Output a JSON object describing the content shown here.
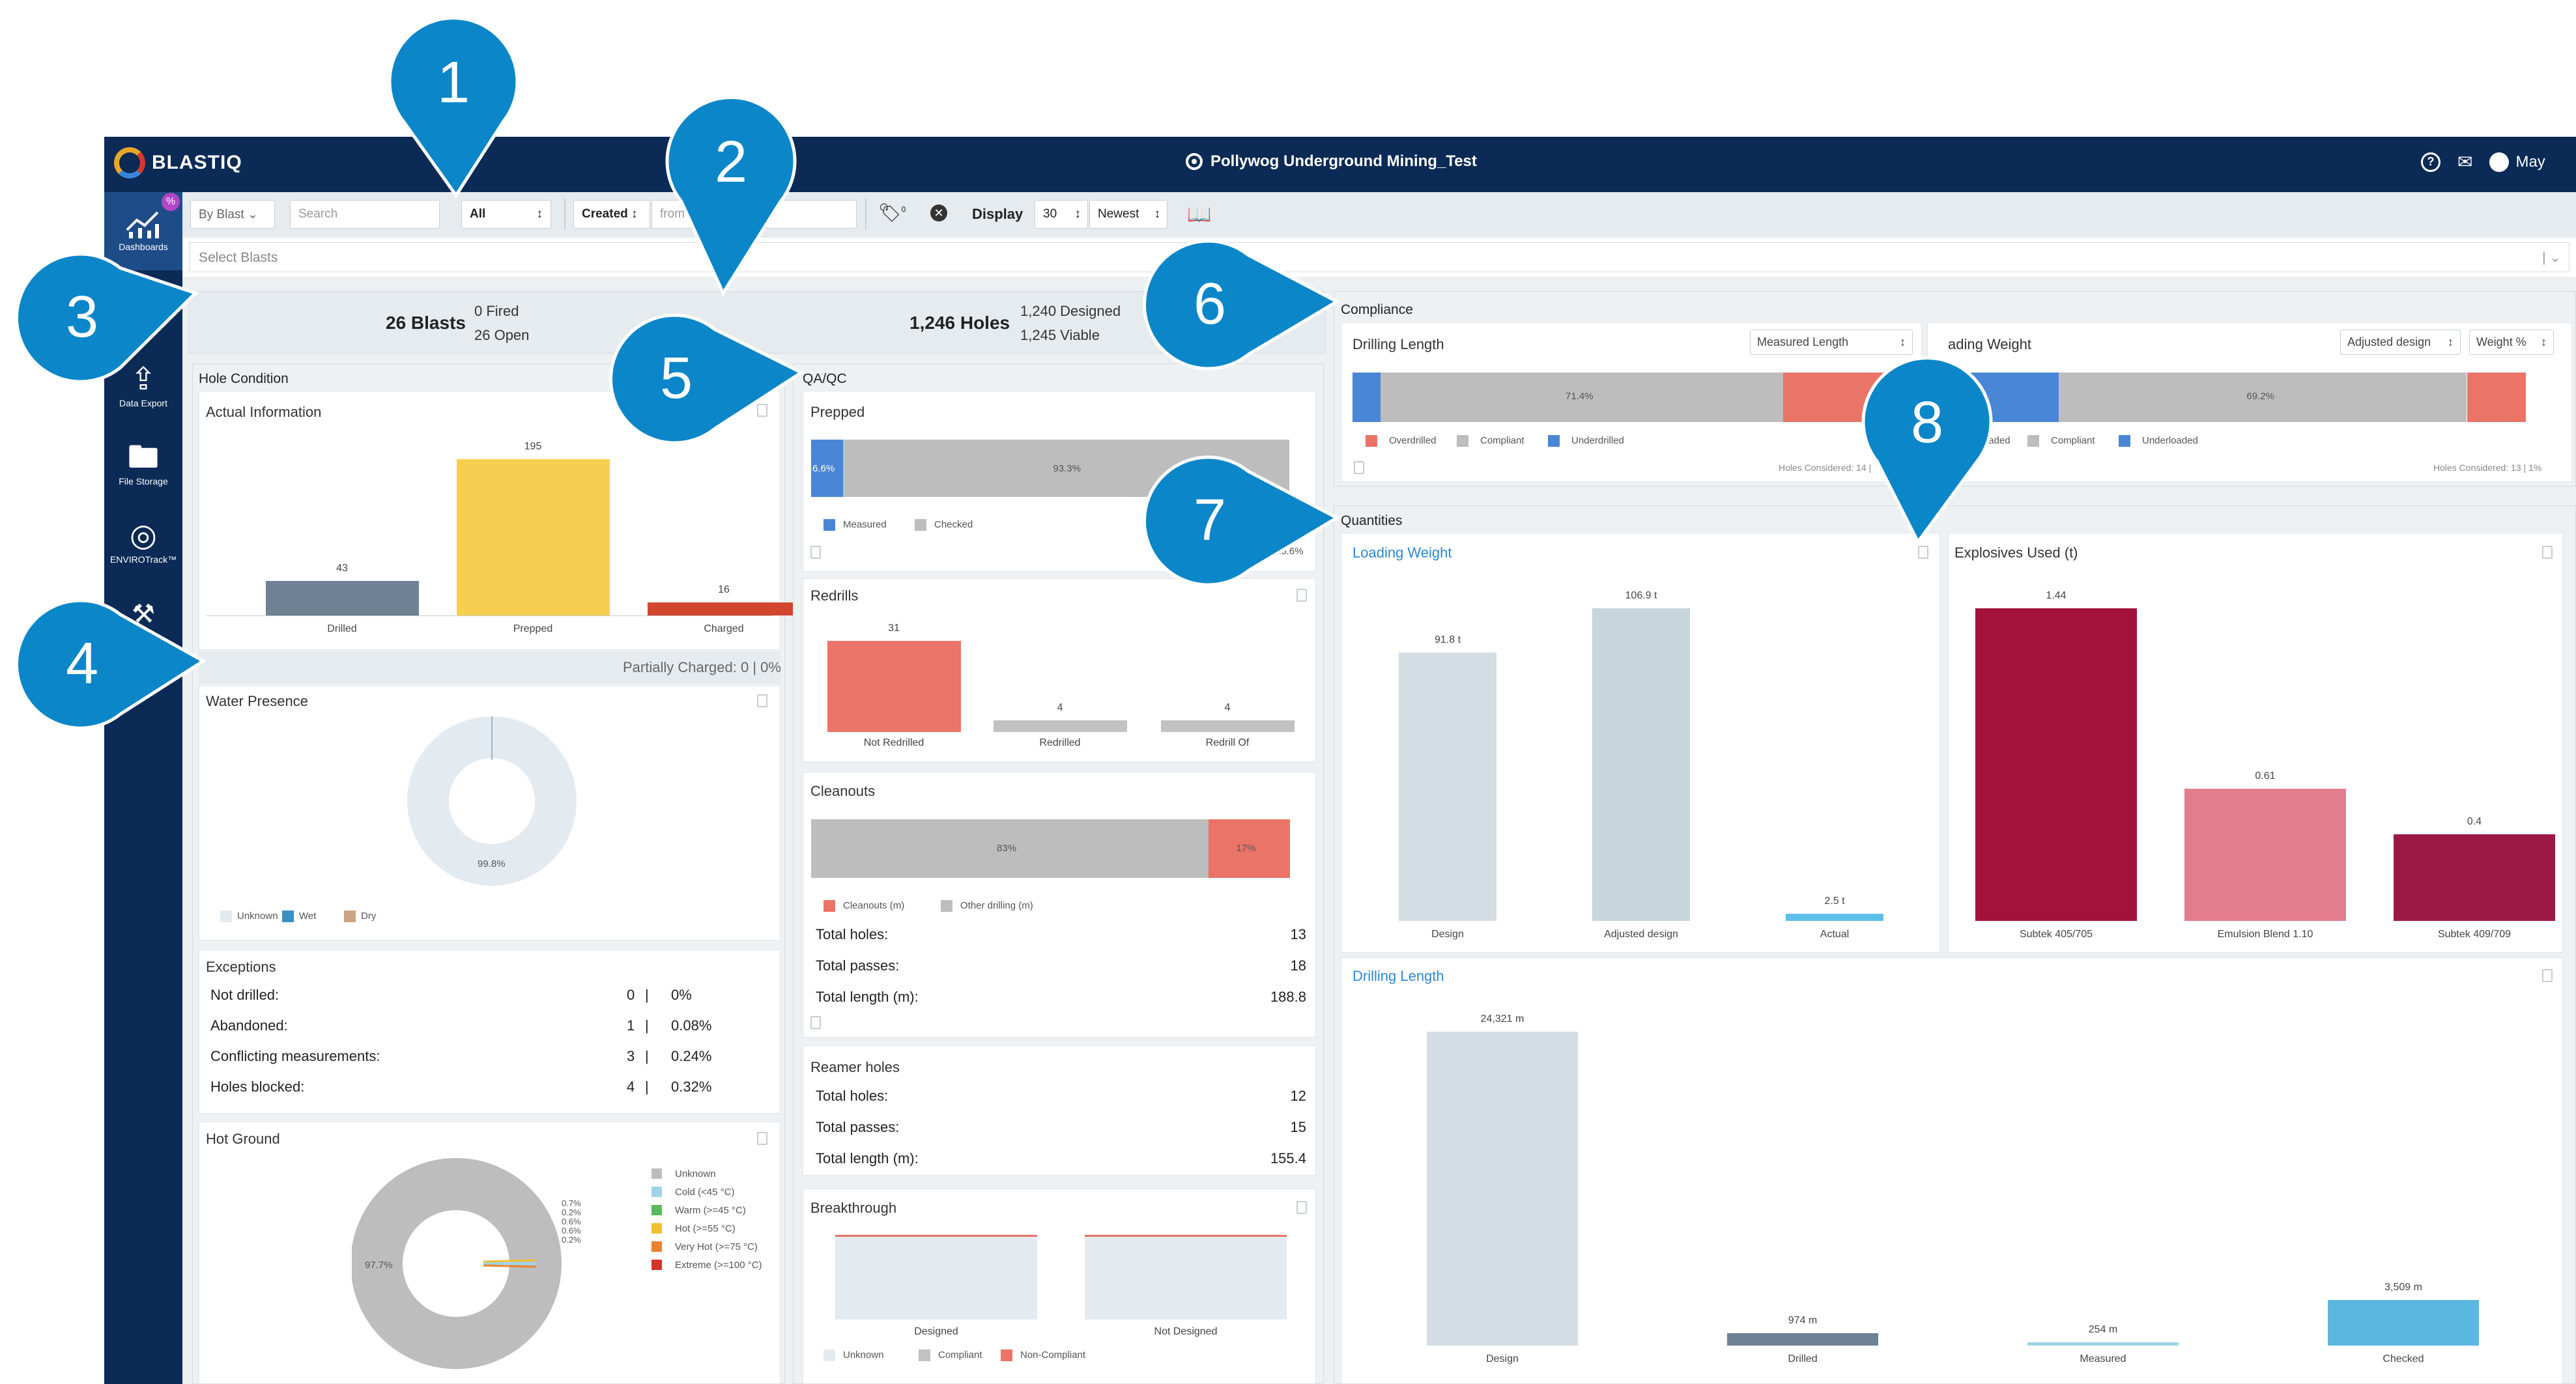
{
  "app": {
    "logo_text": "BLASTIQ",
    "site_title": "Pollywog Underground Mining_Test",
    "user": "May"
  },
  "sidebar": {
    "items": [
      {
        "label": "Dashboards",
        "icon": "chart-icon"
      },
      {
        "label": "Data Export",
        "icon": "upload-icon"
      },
      {
        "label": "File Storage",
        "icon": "folder-icon"
      },
      {
        "label": "ENVIROTrack™",
        "icon": "envirotrack-icon"
      },
      {
        "label": "",
        "icon": "tools-icon"
      }
    ],
    "badge": "%"
  },
  "filters": {
    "by_blast": "By Blast",
    "search_placeholder": "Search",
    "status": "All",
    "date_type": "Created",
    "from_placeholder": "from",
    "to_placeholder": "to",
    "tag_count": "0",
    "display_label": "Display",
    "display_count": "30",
    "sort": "Newest",
    "select_blasts_placeholder": "Select Blasts"
  },
  "summary": {
    "blasts": "26 Blasts",
    "fired": "0 Fired",
    "open": "26 Open",
    "holes": "1,246 Holes",
    "designed": "1,240 Designed",
    "viable": "1,245 Viable"
  },
  "hole_condition": {
    "title": "Hole Condition",
    "actual_info": {
      "title": "Actual Information",
      "bars": [
        {
          "label": "Drilled",
          "value": 43,
          "color": "#6e8195"
        },
        {
          "label": "Prepped",
          "value": 195,
          "color": "#f6cf50"
        },
        {
          "label": "Charged",
          "value": 16,
          "color": "#d2452f"
        }
      ],
      "partially_charged": "Partially Charged: 0 | 0%"
    },
    "water_presence": {
      "title": "Water Presence",
      "slice_label": "99.8%",
      "legend": [
        {
          "label": "Unknown",
          "color": "#e3ebf1"
        },
        {
          "label": "Wet",
          "color": "#3a8fc4"
        },
        {
          "label": "Dry",
          "color": "#c9a582"
        }
      ]
    },
    "exceptions": {
      "title": "Exceptions",
      "rows": [
        {
          "label": "Not drilled:",
          "count": "0",
          "pct": "0%"
        },
        {
          "label": "Abandoned:",
          "count": "1",
          "pct": "0.08%"
        },
        {
          "label": "Conflicting measurements:",
          "count": "3",
          "pct": "0.24%"
        },
        {
          "label": "Holes blocked:",
          "count": "4",
          "pct": "0.32%"
        }
      ]
    },
    "hot_ground": {
      "title": "Hot Ground",
      "main_label": "97.7%",
      "side_labels": [
        "0.7%",
        "0.2%",
        "0.6%",
        "0.6%",
        "0.2%"
      ],
      "legend": [
        {
          "label": "Unknown",
          "color": "#bdbdbd"
        },
        {
          "label": "Cold (<45 °C)",
          "color": "#9fd3e8"
        },
        {
          "label": "Warm (>=45 °C)",
          "color": "#5cb85c"
        },
        {
          "label": "Hot (>=55 °C)",
          "color": "#f0c030"
        },
        {
          "label": "Very Hot (>=75 °C)",
          "color": "#e8832c"
        },
        {
          "label": "Extreme (>=100 °C)",
          "color": "#d2332b"
        }
      ]
    }
  },
  "qaqc": {
    "title": "QA/QC",
    "prepped": {
      "title": "Prepped",
      "measured_pct": "6.6%",
      "checked_pct": "93.3%",
      "measured": 6.6,
      "checked": 93.3,
      "legend": [
        {
          "label": "Measured",
          "color": "#4a86d6"
        },
        {
          "label": "Checked",
          "color": "#bdbdbd"
        }
      ],
      "footer": "15.6%"
    },
    "redrills": {
      "title": "Redrills",
      "bars": [
        {
          "label": "Not Redrilled",
          "value": 31,
          "color": "#ea7467"
        },
        {
          "label": "Redrilled",
          "value": 4,
          "color": "#c2c2c2"
        },
        {
          "label": "Redrill Of",
          "value": 4,
          "color": "#c2c2c2"
        }
      ]
    },
    "cleanouts": {
      "title": "Cleanouts",
      "cleanouts_pct": "83%",
      "other_pct": "17%",
      "cleanouts": 83,
      "other": 17,
      "legend": [
        {
          "label": "Cleanouts (m)",
          "color": "#ea7467"
        },
        {
          "label": "Other drilling (m)",
          "color": "#bdbdbd"
        }
      ],
      "rows": [
        {
          "label": "Total holes:",
          "value": "13"
        },
        {
          "label": "Total passes:",
          "value": "18"
        },
        {
          "label": "Total length (m):",
          "value": "188.8"
        }
      ]
    },
    "reamer": {
      "title": "Reamer holes",
      "rows": [
        {
          "label": "Total holes:",
          "value": "12"
        },
        {
          "label": "Total passes:",
          "value": "15"
        },
        {
          "label": "Total length (m):",
          "value": "155.4"
        }
      ]
    },
    "breakthrough": {
      "title": "Breakthrough",
      "bars": [
        {
          "label": "Designed"
        },
        {
          "label": "Not Designed"
        }
      ],
      "legend": [
        {
          "label": "Unknown",
          "color": "#e3ebf1"
        },
        {
          "label": "Compliant",
          "color": "#c2c2c2"
        },
        {
          "label": "Non-Compliant",
          "color": "#ea7467"
        }
      ]
    }
  },
  "compliance": {
    "title": "Compliance",
    "drilling": {
      "title": "Drilling Length",
      "dropdown": "Measured Length",
      "segments": [
        {
          "label": "Underdrilled",
          "value": 5.0,
          "color": "#4a86d6"
        },
        {
          "label": "Compliant",
          "value": 71.4,
          "color": "#bdbdbd"
        },
        {
          "label": "Overdrilled",
          "value": 23.6,
          "color": "#ea7467"
        }
      ],
      "center_label": "71.4%",
      "legend": [
        {
          "label": "Overdrilled",
          "color": "#ea7467"
        },
        {
          "label": "Compliant",
          "color": "#bdbdbd"
        },
        {
          "label": "Underdrilled",
          "color": "#4a86d6"
        }
      ],
      "holes_considered": "Holes Considered: 14 |"
    },
    "loading": {
      "title": "ading Weight",
      "dropdown1": "Adjusted design",
      "dropdown2": "Weight %",
      "segments": [
        {
          "label": "Underloaded",
          "value": 20.8,
          "color": "#4a86d6"
        },
        {
          "label": "Compliant",
          "value": 69.2,
          "color": "#bdbdbd"
        },
        {
          "label": "Overloaded",
          "value": 10.0,
          "color": "#ea7467"
        }
      ],
      "center_label": "69.2%",
      "legend": [
        {
          "label": "Overloaded",
          "color": "#ea7467"
        },
        {
          "label": "Compliant",
          "color": "#bdbdbd"
        },
        {
          "label": "Underloaded",
          "color": "#4a86d6"
        }
      ],
      "holes_considered": "Holes Considered: 13 | 1%"
    }
  },
  "quantities": {
    "title": "Quantities",
    "loading_weight": {
      "title": "Loading Weight",
      "bars": [
        {
          "label": "Design",
          "value": 91.81,
          "text": "91.8 t",
          "color": "#d3dde3"
        },
        {
          "label": "Adjusted design",
          "value": 106.91,
          "text": "106.9 t",
          "color": "#c7d5dd"
        },
        {
          "label": "Actual",
          "value": 2.51,
          "text": "2.5 t",
          "color": "#5bc0e8"
        }
      ]
    },
    "explosives_used": {
      "title": "Explosives Used (t)",
      "bars": [
        {
          "label": "Subtek 405/705",
          "value": 1.44,
          "text": "1.44",
          "color": "#a3123c"
        },
        {
          "label": "Emulsion Blend 1.10",
          "value": 0.61,
          "text": "0.61",
          "color": "#e27d8e"
        },
        {
          "label": "Subtek 409/709",
          "value": 0.4,
          "text": "0.4",
          "color": "#9c1844"
        }
      ]
    },
    "drilling_length": {
      "title": "Drilling Length",
      "bars": [
        {
          "label": "Design",
          "value": 24321,
          "text": "24,321 m",
          "color": "#d3dde3"
        },
        {
          "label": "Drilled",
          "value": 974,
          "text": "974 m",
          "color": "#6e8195"
        },
        {
          "label": "Measured",
          "value": 254,
          "text": "254 m",
          "color": "#9fd3e8"
        },
        {
          "label": "Checked",
          "value": 3509,
          "text": "3,509 m",
          "color": "#5bb6e0"
        }
      ]
    }
  },
  "callouts": [
    "1",
    "2",
    "3",
    "4",
    "5",
    "6",
    "7",
    "8"
  ],
  "colors": {
    "navy": "#0b2a55",
    "callout": "#0a86c9"
  }
}
